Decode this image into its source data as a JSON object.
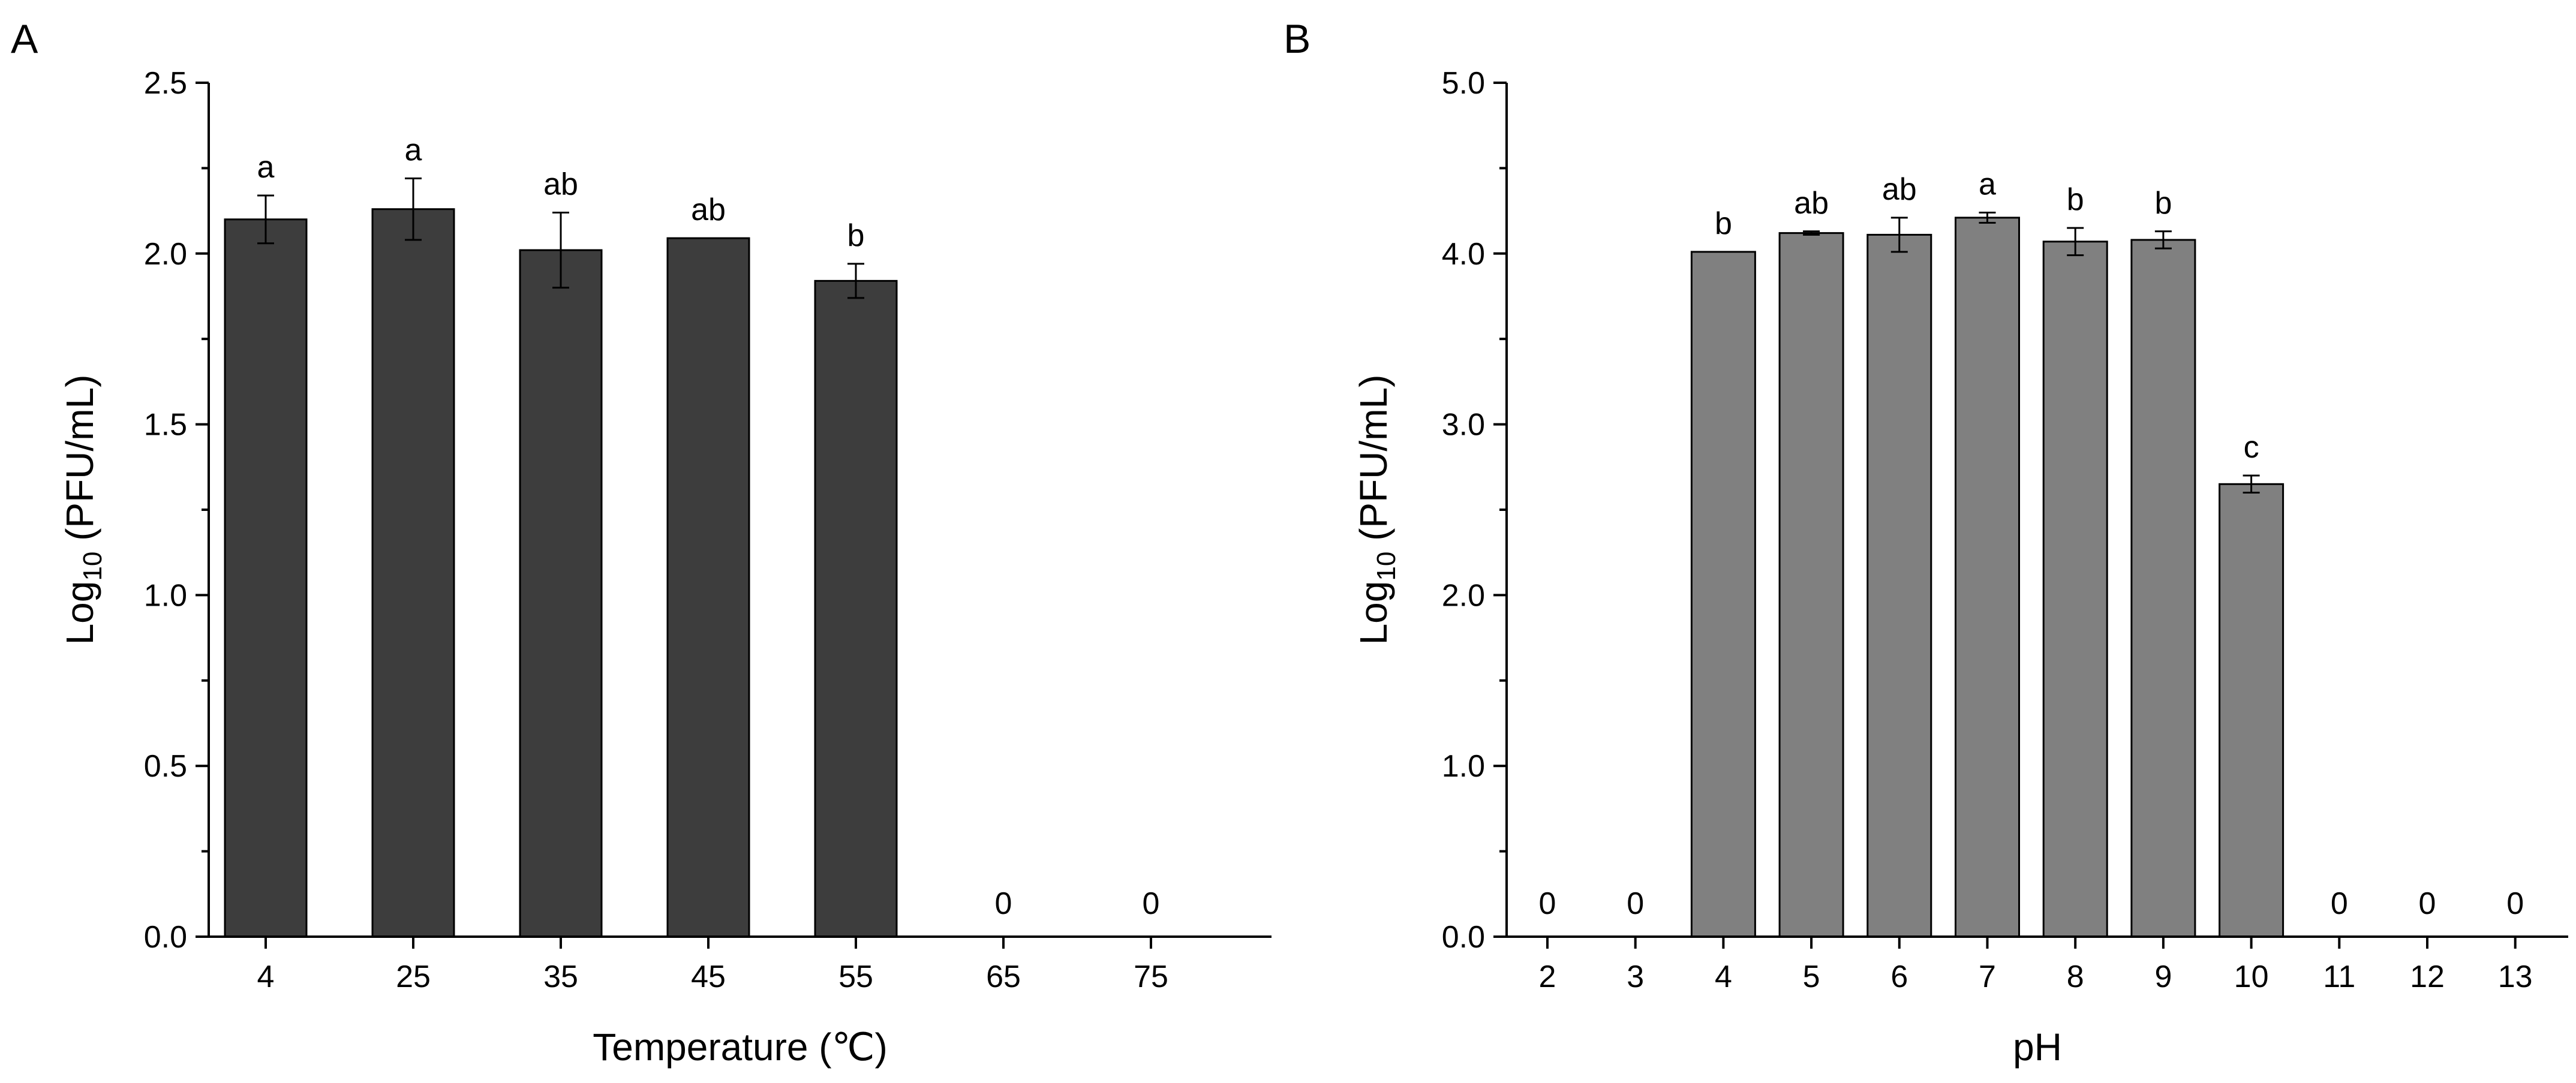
{
  "chart_data": [
    {
      "type": "bar",
      "panel_label": "A",
      "xlabel": "Temperature (℃)",
      "ylabel_main": "Log",
      "ylabel_sub": "10",
      "ylabel_rest": " (PFU/mL)",
      "categories": [
        "4",
        "25",
        "35",
        "45",
        "55",
        "65",
        "75"
      ],
      "values": [
        2.1,
        2.13,
        2.01,
        2.045,
        1.92,
        0,
        0
      ],
      "errors": [
        0.07,
        0.09,
        0.11,
        0.0,
        0.05,
        0,
        0
      ],
      "significance": [
        "a",
        "a",
        "ab",
        "ab",
        "b",
        "0",
        "0"
      ],
      "ylim": [
        0,
        2.5
      ],
      "yticks": [
        0.0,
        0.5,
        1.0,
        1.5,
        2.0,
        2.5
      ],
      "ytick_labels": [
        "0.0",
        "0.5",
        "1.0",
        "1.5",
        "2.0",
        "2.5"
      ],
      "bar_color": "#3d3d3d"
    },
    {
      "type": "bar",
      "panel_label": "B",
      "xlabel": "pH",
      "ylabel_main": "Log",
      "ylabel_sub": "10",
      "ylabel_rest": " (PFU/mL)",
      "categories": [
        "2",
        "3",
        "4",
        "5",
        "6",
        "7",
        "8",
        "9",
        "10",
        "11",
        "12",
        "13"
      ],
      "values": [
        0,
        0,
        4.01,
        4.12,
        4.11,
        4.21,
        4.07,
        4.08,
        2.65,
        0,
        0,
        0
      ],
      "errors": [
        0,
        0,
        0.0,
        0.01,
        0.1,
        0.03,
        0.08,
        0.05,
        0.05,
        0,
        0,
        0
      ],
      "significance": [
        "0",
        "0",
        "b",
        "ab",
        "ab",
        "a",
        "b",
        "b",
        "c",
        "0",
        "0",
        "0"
      ],
      "ylim": [
        0,
        5
      ],
      "yticks": [
        0.0,
        1.0,
        2.0,
        3.0,
        4.0,
        5.0
      ],
      "ytick_labels": [
        "0.0",
        "1.0",
        "2.0",
        "3.0",
        "4.0",
        "5.0"
      ],
      "bar_color": "#808080"
    }
  ]
}
